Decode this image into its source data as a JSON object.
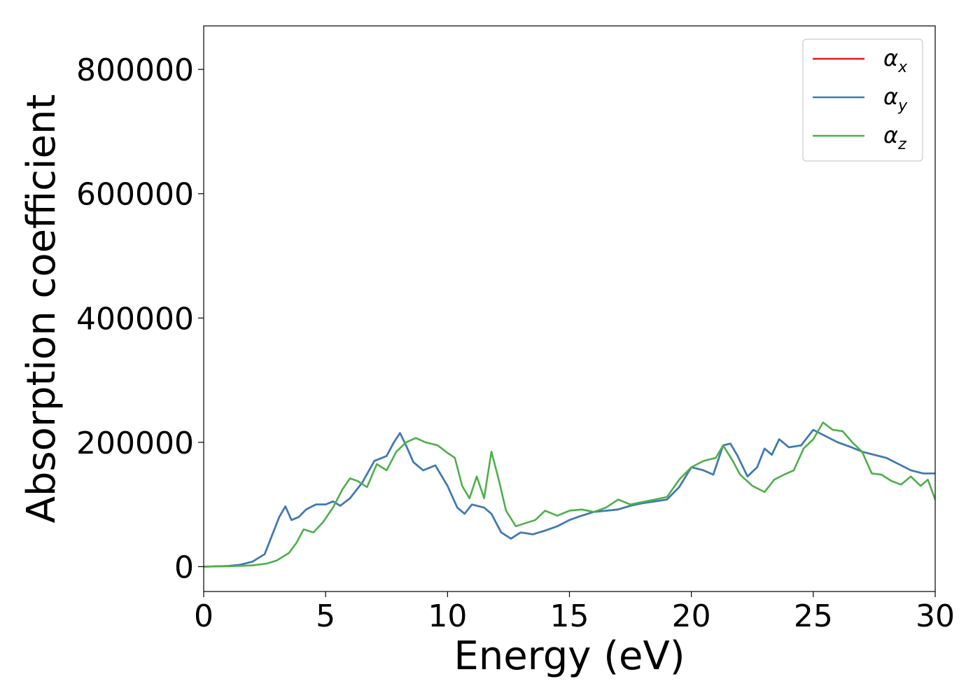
{
  "chart_data": {
    "type": "line",
    "title": "",
    "xlabel": "Energy (eV)",
    "ylabel": "Absorption coefficient",
    "xlim": [
      0,
      30
    ],
    "ylim": [
      -40000,
      870000
    ],
    "xticks": [
      0,
      5,
      10,
      15,
      20,
      25,
      30
    ],
    "xtick_labels": [
      "0",
      "5",
      "10",
      "15",
      "20",
      "25",
      "30"
    ],
    "yticks": [
      0,
      200000,
      400000,
      600000,
      800000
    ],
    "ytick_labels": [
      "0",
      "200000",
      "400000",
      "600000",
      "800000"
    ],
    "grid": false,
    "legend_position": "top-right",
    "series": [
      {
        "name": "αx",
        "legend_base": "α",
        "legend_sub": "x",
        "color": "#e41a1c",
        "x": [
          0,
          1,
          1.5,
          2,
          2.5,
          2.8,
          3.1,
          3.35,
          3.6,
          3.9,
          4.2,
          4.6,
          5.0,
          5.3,
          5.6,
          6.0,
          6.5,
          7.0,
          7.5,
          7.8,
          8.05,
          8.3,
          8.6,
          9.0,
          9.5,
          10.0,
          10.4,
          10.7,
          11.0,
          11.5,
          11.8,
          12.2,
          12.6,
          13.0,
          13.5,
          14.0,
          14.5,
          15.0,
          15.5,
          16.0,
          16.5,
          17.0,
          17.5,
          18.0,
          18.5,
          19.0,
          19.5,
          20.0,
          20.5,
          20.9,
          21.3,
          21.6,
          21.9,
          22.3,
          22.7,
          23.0,
          23.3,
          23.6,
          24.0,
          24.5,
          25.0,
          25.5,
          26.0,
          26.5,
          27.0,
          27.5,
          28.0,
          28.5,
          29.0,
          29.5,
          30.0
        ],
        "values": [
          0,
          1000,
          3000,
          8000,
          20000,
          50000,
          80000,
          97000,
          75000,
          80000,
          92000,
          100000,
          100000,
          105000,
          98000,
          110000,
          135000,
          170000,
          178000,
          200000,
          215000,
          195000,
          168000,
          155000,
          163000,
          130000,
          95000,
          85000,
          100000,
          95000,
          85000,
          55000,
          45000,
          55000,
          52000,
          58000,
          65000,
          75000,
          82000,
          88000,
          90000,
          92000,
          98000,
          102000,
          105000,
          108000,
          128000,
          160000,
          155000,
          148000,
          195000,
          198000,
          178000,
          145000,
          160000,
          190000,
          180000,
          205000,
          192000,
          195000,
          220000,
          210000,
          200000,
          193000,
          185000,
          180000,
          175000,
          165000,
          155000,
          150000,
          150000
        ]
      },
      {
        "name": "αy",
        "legend_base": "α",
        "legend_sub": "y",
        "color": "#377eb8",
        "x": [
          0,
          1,
          1.5,
          2,
          2.5,
          2.8,
          3.1,
          3.35,
          3.6,
          3.9,
          4.2,
          4.6,
          5.0,
          5.3,
          5.6,
          6.0,
          6.5,
          7.0,
          7.5,
          7.8,
          8.05,
          8.3,
          8.6,
          9.0,
          9.5,
          10.0,
          10.4,
          10.7,
          11.0,
          11.5,
          11.8,
          12.2,
          12.6,
          13.0,
          13.5,
          14.0,
          14.5,
          15.0,
          15.5,
          16.0,
          16.5,
          17.0,
          17.5,
          18.0,
          18.5,
          19.0,
          19.5,
          20.0,
          20.5,
          20.9,
          21.3,
          21.6,
          21.9,
          22.3,
          22.7,
          23.0,
          23.3,
          23.6,
          24.0,
          24.5,
          25.0,
          25.5,
          26.0,
          26.5,
          27.0,
          27.5,
          28.0,
          28.5,
          29.0,
          29.5,
          30.0
        ],
        "values": [
          0,
          1000,
          3000,
          8000,
          20000,
          50000,
          80000,
          97000,
          75000,
          80000,
          92000,
          100000,
          100000,
          105000,
          98000,
          110000,
          135000,
          170000,
          178000,
          200000,
          215000,
          195000,
          168000,
          155000,
          163000,
          130000,
          95000,
          85000,
          100000,
          95000,
          85000,
          55000,
          45000,
          55000,
          52000,
          58000,
          65000,
          75000,
          82000,
          88000,
          90000,
          92000,
          98000,
          102000,
          105000,
          108000,
          128000,
          160000,
          155000,
          148000,
          195000,
          198000,
          178000,
          145000,
          160000,
          190000,
          180000,
          205000,
          192000,
          195000,
          220000,
          210000,
          200000,
          193000,
          185000,
          180000,
          175000,
          165000,
          155000,
          150000,
          150000
        ]
      },
      {
        "name": "αz",
        "legend_base": "α",
        "legend_sub": "z",
        "color": "#4daf4a",
        "x": [
          0,
          1,
          2,
          2.6,
          3.0,
          3.5,
          3.8,
          4.1,
          4.5,
          4.9,
          5.3,
          5.7,
          6.0,
          6.3,
          6.7,
          7.1,
          7.5,
          7.9,
          8.3,
          8.7,
          9.1,
          9.6,
          10.0,
          10.3,
          10.6,
          10.9,
          11.2,
          11.5,
          11.8,
          12.1,
          12.4,
          12.8,
          13.2,
          13.6,
          14.0,
          14.5,
          15.0,
          15.5,
          16.0,
          16.5,
          17.0,
          17.5,
          18.0,
          18.5,
          19.0,
          19.5,
          20.0,
          20.5,
          21.0,
          21.3,
          21.7,
          22.0,
          22.5,
          23.0,
          23.4,
          23.8,
          24.2,
          24.6,
          25.0,
          25.4,
          25.8,
          26.2,
          26.6,
          27.0,
          27.4,
          27.8,
          28.2,
          28.6,
          29.0,
          29.4,
          29.7,
          30.0
        ],
        "values": [
          0,
          500,
          2000,
          5000,
          10000,
          22000,
          38000,
          60000,
          55000,
          72000,
          95000,
          125000,
          142000,
          138000,
          128000,
          165000,
          155000,
          185000,
          200000,
          207000,
          200000,
          195000,
          183000,
          175000,
          130000,
          110000,
          145000,
          110000,
          185000,
          140000,
          90000,
          65000,
          70000,
          75000,
          90000,
          82000,
          90000,
          92000,
          88000,
          95000,
          108000,
          100000,
          104000,
          108000,
          112000,
          140000,
          160000,
          170000,
          175000,
          195000,
          170000,
          148000,
          130000,
          120000,
          140000,
          148000,
          155000,
          190000,
          205000,
          232000,
          220000,
          218000,
          200000,
          185000,
          150000,
          148000,
          138000,
          132000,
          145000,
          130000,
          140000,
          108000
        ]
      }
    ]
  }
}
